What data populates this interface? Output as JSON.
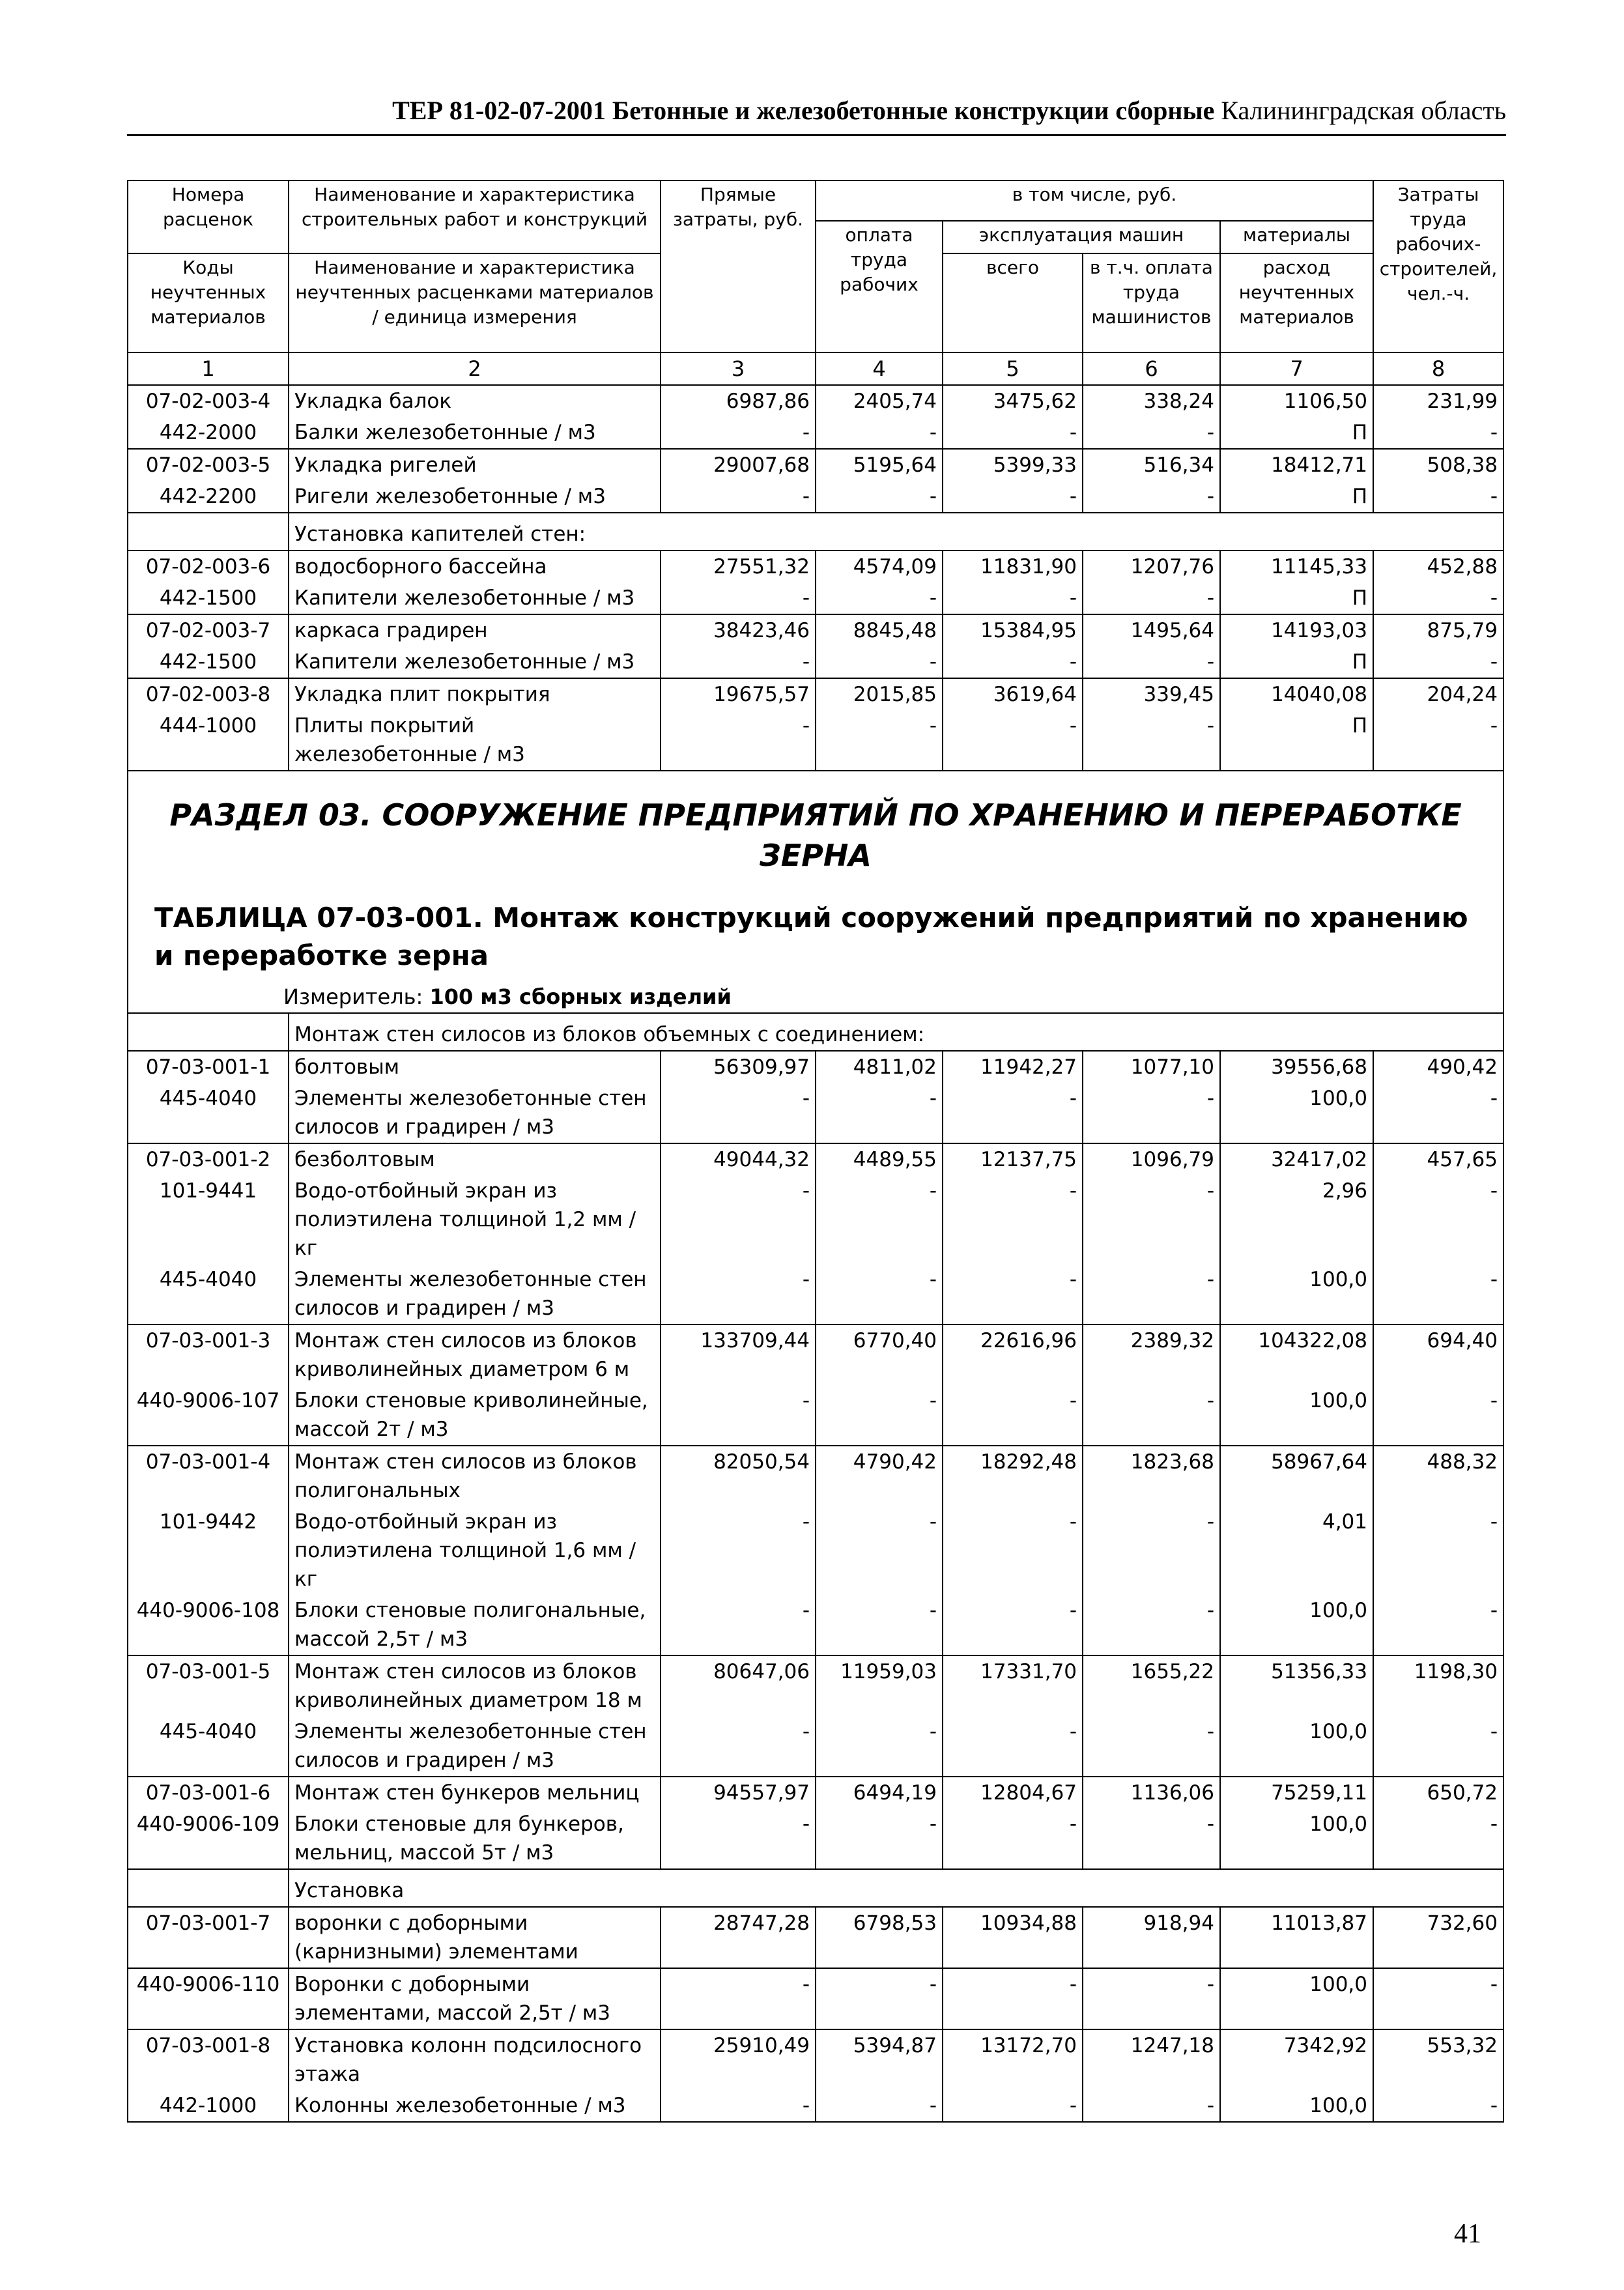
{
  "header": {
    "doc_code": "ТЕР 81-02-07-2001",
    "doc_title": "Бетонные и железобетонные конструкции сборные",
    "region": "Калининградская область"
  },
  "table_header": {
    "col1_top": "Номера расценок",
    "col2_top": "Наименование и характеристика строительных работ и конструкций",
    "col1_bottom": "Коды неучтенных материалов",
    "col2_bottom": "Наименование и характеристика неучтенных расценками материалов / единица измерения",
    "col3": "Прямые затраты, руб.",
    "group": "в том числе, руб.",
    "col4": "оплата труда рабочих",
    "machines": "эксплуатация машин",
    "col5": "всего",
    "col6": "в т.ч. оплата труда машинистов",
    "materials": "материалы",
    "col7": "расход неучтенных материалов",
    "col8": "Затраты труда рабочих-строителей, чел.-ч.",
    "numbers": [
      "1",
      "2",
      "3",
      "4",
      "5",
      "6",
      "7",
      "8"
    ]
  },
  "table1": [
    {
      "rows": [
        {
          "code": "07-02-003-4",
          "name": "Укладка балок",
          "v": [
            "6987,86",
            "2405,74",
            "3475,62",
            "338,24",
            "1106,50",
            "231,99"
          ]
        },
        {
          "code": "442-2000",
          "name": "Балки железобетонные / м3",
          "v": [
            "-",
            "-",
            "-",
            "-",
            "П",
            "-"
          ]
        }
      ]
    },
    {
      "rows": [
        {
          "code": "07-02-003-5",
          "name": "Укладка ригелей",
          "v": [
            "29007,68",
            "5195,64",
            "5399,33",
            "516,34",
            "18412,71",
            "508,38"
          ]
        },
        {
          "code": "442-2200",
          "name": "Ригели железобетонные / м3",
          "v": [
            "-",
            "-",
            "-",
            "-",
            "П",
            "-"
          ]
        }
      ]
    },
    {
      "subheading": "Установка капителей стен:"
    },
    {
      "rows": [
        {
          "code": "07-02-003-6",
          "name": "водосборного бассейна",
          "v": [
            "27551,32",
            "4574,09",
            "11831,90",
            "1207,76",
            "11145,33",
            "452,88"
          ]
        },
        {
          "code": "442-1500",
          "name": "Капители железобетонные / м3",
          "v": [
            "-",
            "-",
            "-",
            "-",
            "П",
            "-"
          ]
        }
      ]
    },
    {
      "rows": [
        {
          "code": "07-02-003-7",
          "name": "каркаса градирен",
          "v": [
            "38423,46",
            "8845,48",
            "15384,95",
            "1495,64",
            "14193,03",
            "875,79"
          ]
        },
        {
          "code": "442-1500",
          "name": "Капители железобетонные / м3",
          "v": [
            "-",
            "-",
            "-",
            "-",
            "П",
            "-"
          ]
        }
      ]
    },
    {
      "rows": [
        {
          "code": "07-02-003-8",
          "name": "Укладка плит покрытия",
          "v": [
            "19675,57",
            "2015,85",
            "3619,64",
            "339,45",
            "14040,08",
            "204,24"
          ]
        },
        {
          "code": "444-1000",
          "name": "Плиты покрытий железобетонные / м3",
          "v": [
            "-",
            "-",
            "-",
            "-",
            "П",
            "-"
          ]
        }
      ]
    }
  ],
  "section": {
    "title": "РАЗДЕЛ 03. СООРУЖЕНИЕ ПРЕДПРИЯТИЙ ПО ХРАНЕНИЮ И ПЕРЕРАБОТКЕ ЗЕРНА",
    "table_title": "ТАБЛИЦА 07-03-001. Монтаж конструкций сооружений предприятий по хранению и переработке зерна",
    "measure_label": "Измеритель:",
    "measure_value": "100 м3 сборных изделий"
  },
  "table2": [
    {
      "subheading": "Монтаж стен силосов из блоков объемных с соединением:"
    },
    {
      "rows": [
        {
          "code": "07-03-001-1",
          "name": "болтовым",
          "v": [
            "56309,97",
            "4811,02",
            "11942,27",
            "1077,10",
            "39556,68",
            "490,42"
          ]
        },
        {
          "code": "445-4040",
          "name": "Элементы железобетонные стен силосов и градирен / м3",
          "v": [
            "-",
            "-",
            "-",
            "-",
            "100,0",
            "-"
          ]
        }
      ]
    },
    {
      "rows": [
        {
          "code": "07-03-001-2",
          "name": "безболтовым",
          "v": [
            "49044,32",
            "4489,55",
            "12137,75",
            "1096,79",
            "32417,02",
            "457,65"
          ]
        },
        {
          "code": "101-9441",
          "name": "Водо-отбойный экран из полиэтилена толщиной 1,2 мм / кг",
          "v": [
            "-",
            "-",
            "-",
            "-",
            "2,96",
            "-"
          ]
        },
        {
          "code": "445-4040",
          "name": "Элементы железобетонные стен силосов и градирен / м3",
          "v": [
            "-",
            "-",
            "-",
            "-",
            "100,0",
            "-"
          ]
        }
      ]
    },
    {
      "rows": [
        {
          "code": "07-03-001-3",
          "name": "Монтаж стен силосов из блоков криволинейных диаметром 6 м",
          "v": [
            "133709,44",
            "6770,40",
            "22616,96",
            "2389,32",
            "104322,08",
            "694,40"
          ]
        },
        {
          "code": "440-9006-107",
          "name": "Блоки стеновые криволинейные, массой 2т / м3",
          "v": [
            "-",
            "-",
            "-",
            "-",
            "100,0",
            "-"
          ]
        }
      ]
    },
    {
      "rows": [
        {
          "code": "07-03-001-4",
          "name": "Монтаж стен силосов из блоков полигональных",
          "v": [
            "82050,54",
            "4790,42",
            "18292,48",
            "1823,68",
            "58967,64",
            "488,32"
          ]
        },
        {
          "code": "101-9442",
          "name": "Водо-отбойный экран из полиэтилена толщиной 1,6 мм / кг",
          "v": [
            "-",
            "-",
            "-",
            "-",
            "4,01",
            "-"
          ]
        },
        {
          "code": "440-9006-108",
          "name": "Блоки стеновые полигональные, массой 2,5т / м3",
          "v": [
            "-",
            "-",
            "-",
            "-",
            "100,0",
            "-"
          ]
        }
      ]
    },
    {
      "rows": [
        {
          "code": "07-03-001-5",
          "name": "Монтаж стен силосов из блоков криволинейных диаметром 18 м",
          "v": [
            "80647,06",
            "11959,03",
            "17331,70",
            "1655,22",
            "51356,33",
            "1198,30"
          ]
        },
        {
          "code": "445-4040",
          "name": "Элементы железобетонные стен силосов и градирен / м3",
          "v": [
            "-",
            "-",
            "-",
            "-",
            "100,0",
            "-"
          ]
        }
      ]
    },
    {
      "rows": [
        {
          "code": "07-03-001-6",
          "name": "Монтаж стен бункеров мельниц",
          "v": [
            "94557,97",
            "6494,19",
            "12804,67",
            "1136,06",
            "75259,11",
            "650,72"
          ]
        },
        {
          "code": "440-9006-109",
          "name": "Блоки стеновые для бункеров, мельниц, массой 5т / м3",
          "v": [
            "-",
            "-",
            "-",
            "-",
            "100,0",
            "-"
          ]
        }
      ]
    },
    {
      "subheading": "Установка"
    },
    {
      "rows": [
        {
          "code": "07-03-001-7",
          "name": "воронки с доборными (карнизными) элементами",
          "v": [
            "28747,28",
            "6798,53",
            "10934,88",
            "918,94",
            "11013,87",
            "732,60"
          ]
        }
      ]
    },
    {
      "rows": [
        {
          "code": "440-9006-110",
          "name": "Воронки с доборными элементами, массой 2,5т / м3",
          "v": [
            "-",
            "-",
            "-",
            "-",
            "100,0",
            "-"
          ]
        }
      ]
    },
    {
      "rows": [
        {
          "code": "07-03-001-8",
          "name": "Установка колонн подсилосного этажа",
          "v": [
            "25910,49",
            "5394,87",
            "13172,70",
            "1247,18",
            "7342,92",
            "553,32"
          ]
        },
        {
          "code": "442-1000",
          "name": "Колонны железобетонные / м3",
          "v": [
            "-",
            "-",
            "-",
            "-",
            "100,0",
            "-"
          ]
        }
      ]
    }
  ],
  "page_number": "41"
}
